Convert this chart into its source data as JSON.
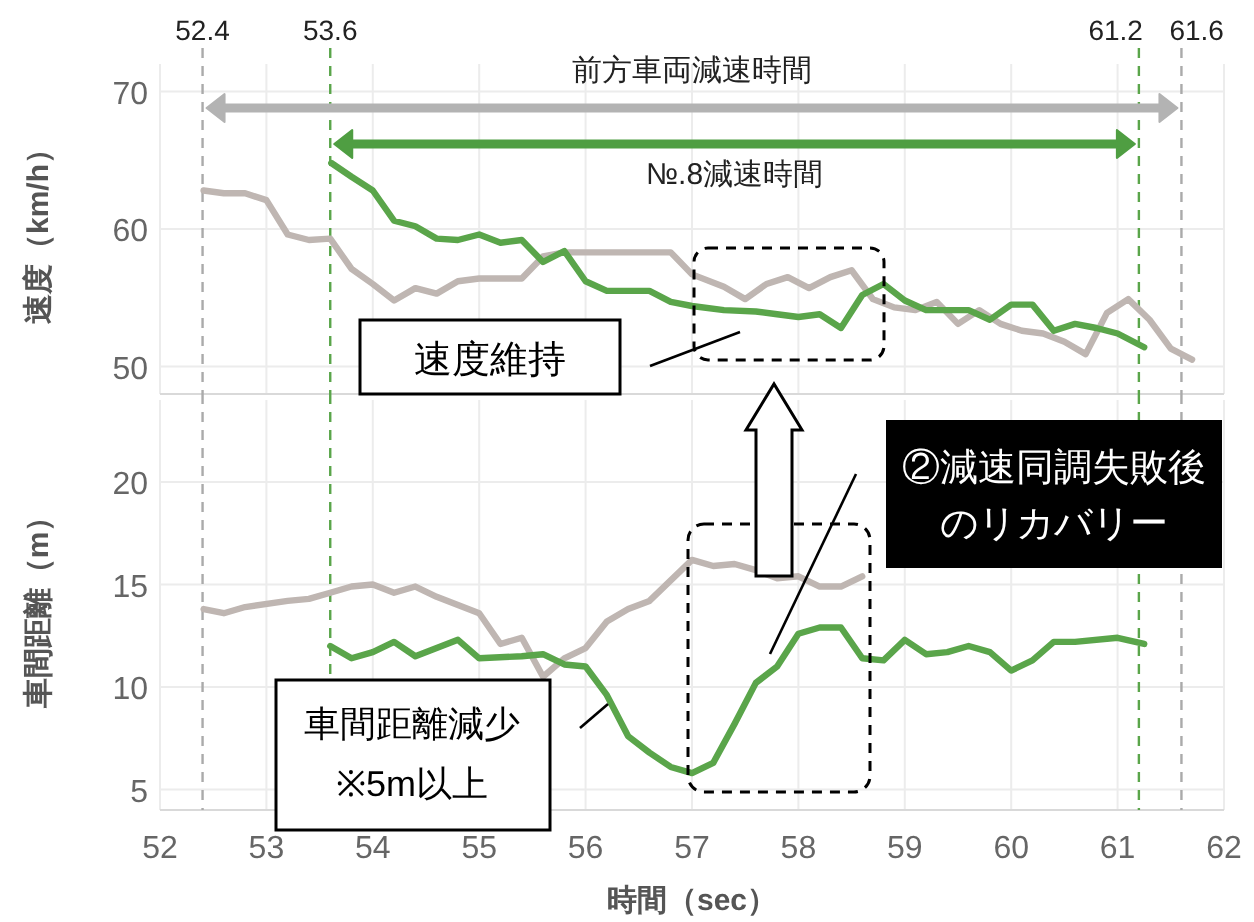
{
  "chart_data": [
    {
      "type": "line",
      "ylabel": "速度（km/h）",
      "xlim": [
        52,
        62
      ],
      "xticks": [
        52,
        53,
        54,
        55,
        56,
        57,
        58,
        59,
        60,
        61,
        62
      ],
      "ylim": [
        48,
        72
      ],
      "yticks": [
        50,
        60,
        70
      ],
      "grid": true,
      "tick_labels": "y",
      "marker": "none",
      "line_style": "solid",
      "series": [
        {
          "color": "#bfb6b2",
          "x": [
            52.41,
            52.6,
            52.8,
            53.0,
            53.2,
            53.4,
            53.6,
            53.8,
            54.0,
            54.2,
            54.4,
            54.6,
            54.8,
            55.0,
            55.4,
            55.6,
            55.8,
            56.3,
            56.8,
            57.0,
            57.3,
            57.5,
            57.7,
            57.9,
            58.1,
            58.3,
            58.5,
            58.7,
            58.9,
            59.1,
            59.3,
            59.5,
            59.7,
            59.9,
            60.1,
            60.3,
            60.5,
            60.7,
            60.9,
            61.1,
            61.3,
            61.5,
            61.7
          ],
          "values": [
            62.8,
            62.6,
            62.6,
            62.1,
            59.6,
            59.2,
            59.3,
            57.1,
            56.0,
            54.8,
            55.7,
            55.3,
            56.2,
            56.4,
            56.4,
            58.0,
            58.3,
            58.3,
            58.3,
            56.7,
            55.8,
            54.9,
            56.0,
            56.5,
            55.7,
            56.5,
            57.0,
            54.9,
            54.3,
            54.1,
            54.7,
            53.1,
            54.1,
            53.1,
            52.6,
            52.4,
            51.8,
            50.9,
            53.9,
            54.9,
            53.4,
            51.3,
            50.5
          ]
        },
        {
          "color": "#5aa54a",
          "x": [
            53.61,
            53.8,
            54.0,
            54.2,
            54.4,
            54.6,
            54.8,
            55.0,
            55.2,
            55.4,
            55.6,
            55.8,
            56.0,
            56.2,
            56.4,
            56.6,
            56.8,
            57.0,
            57.3,
            57.6,
            57.8,
            58.0,
            58.2,
            58.4,
            58.6,
            58.8,
            59.0,
            59.2,
            59.4,
            59.6,
            59.8,
            60.0,
            60.2,
            60.4,
            60.6,
            60.8,
            61.0,
            61.25
          ],
          "values": [
            64.8,
            63.8,
            62.8,
            60.6,
            60.2,
            59.3,
            59.2,
            59.6,
            59.0,
            59.2,
            57.6,
            58.4,
            56.2,
            55.5,
            55.5,
            55.5,
            54.7,
            54.4,
            54.1,
            54.0,
            53.8,
            53.6,
            53.8,
            52.8,
            55.2,
            56.0,
            54.8,
            54.1,
            54.1,
            54.1,
            53.4,
            54.5,
            54.5,
            52.6,
            53.1,
            52.8,
            52.4,
            51.4
          ]
        }
      ],
      "ref_lines": [
        {
          "axis": "x",
          "value": 52.4,
          "label": "52.4",
          "color": "#aaaaaa",
          "line_style": "dashed"
        },
        {
          "axis": "x",
          "value": 53.6,
          "label": "53.6",
          "color": "#5aa54a",
          "line_style": "dashed"
        },
        {
          "axis": "x",
          "value": 61.2,
          "label": "61.2",
          "color": "#5aa54a",
          "line_style": "dashed"
        },
        {
          "axis": "x",
          "value": 61.6,
          "label": "61.6",
          "color": "#aaaaaa",
          "line_style": "dashed"
        }
      ],
      "annotations": [
        "前方車両減速時間",
        "№.8減速時間",
        "速度維持"
      ]
    },
    {
      "type": "line",
      "xlabel": "時間（sec）",
      "ylabel": "車間距離（m）",
      "xlim": [
        52,
        62
      ],
      "xticks": [
        52,
        53,
        54,
        55,
        56,
        57,
        58,
        59,
        60,
        61,
        62
      ],
      "ylim": [
        4,
        24
      ],
      "yticks": [
        5,
        10,
        15,
        20
      ],
      "grid": true,
      "marker": "none",
      "line_style": "solid",
      "series": [
        {
          "color": "#bfb6b2",
          "x": [
            52.41,
            52.6,
            52.8,
            53.2,
            53.4,
            53.6,
            53.8,
            54.0,
            54.2,
            54.4,
            54.6,
            54.8,
            55.0,
            55.2,
            55.4,
            55.6,
            55.8,
            56.0,
            56.2,
            56.4,
            56.6,
            56.8,
            57.0,
            57.2,
            57.4,
            57.6,
            57.8,
            58.0,
            58.2,
            58.4,
            58.6
          ],
          "values": [
            13.8,
            13.6,
            13.9,
            14.2,
            14.3,
            14.6,
            14.9,
            15.0,
            14.6,
            14.9,
            14.4,
            14.0,
            13.6,
            12.1,
            12.4,
            10.5,
            11.4,
            11.9,
            13.2,
            13.8,
            14.2,
            15.2,
            16.2,
            15.9,
            16.0,
            15.7,
            15.3,
            15.4,
            14.9,
            14.9,
            15.4
          ]
        },
        {
          "color": "#5aa54a",
          "x": [
            53.6,
            53.8,
            54.0,
            54.2,
            54.4,
            54.6,
            54.8,
            55.0,
            55.4,
            55.6,
            55.8,
            56.0,
            56.2,
            56.4,
            56.6,
            56.8,
            57.0,
            57.2,
            57.4,
            57.6,
            57.8,
            58.0,
            58.2,
            58.4,
            58.6,
            58.8,
            59.0,
            59.2,
            59.4,
            59.6,
            59.8,
            60.0,
            60.2,
            60.4,
            60.6,
            61.0,
            61.25
          ],
          "values": [
            12.0,
            11.4,
            11.7,
            12.2,
            11.5,
            11.9,
            12.3,
            11.4,
            11.5,
            11.6,
            11.1,
            11.0,
            9.6,
            7.6,
            6.8,
            6.1,
            5.8,
            6.3,
            8.2,
            10.2,
            11.0,
            12.6,
            12.9,
            12.9,
            11.4,
            11.3,
            12.3,
            11.6,
            11.7,
            12.0,
            11.7,
            10.8,
            11.3,
            12.2,
            12.2,
            12.4,
            12.1
          ]
        }
      ],
      "ref_lines": [
        {
          "axis": "x",
          "value": 52.4,
          "color": "#aaaaaa",
          "line_style": "dashed"
        },
        {
          "axis": "x",
          "value": 53.6,
          "color": "#5aa54a",
          "line_style": "dashed"
        },
        {
          "axis": "x",
          "value": 61.2,
          "color": "#5aa54a",
          "line_style": "dashed"
        },
        {
          "axis": "x",
          "value": 61.6,
          "color": "#aaaaaa",
          "line_style": "dashed"
        }
      ],
      "annotations": [
        "②減速同調失敗後のリカバリー",
        "車間距離減少※5m以上"
      ]
    }
  ]
}
